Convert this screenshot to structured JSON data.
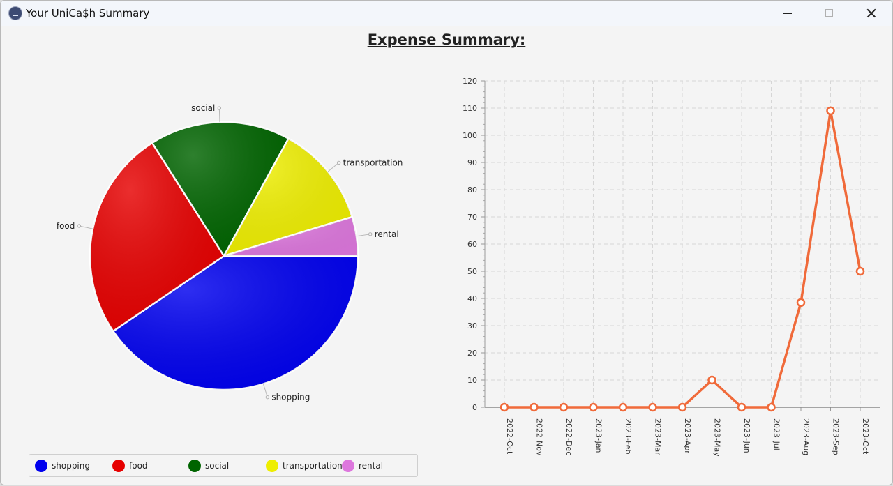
{
  "window": {
    "title": "Your UniCa$h Summary"
  },
  "page": {
    "heading": "Expense Summary:"
  },
  "colors": {
    "shopping": "#0000ee",
    "food": "#e60000",
    "social": "#006400",
    "transportation": "#eeee00",
    "rental": "#dd77dd",
    "line": "#f06a3a"
  },
  "chart_data": [
    {
      "type": "pie",
      "slices": [
        {
          "label": "shopping",
          "value": 40.5
        },
        {
          "label": "food",
          "value": 25.5
        },
        {
          "label": "social",
          "value": 17.0
        },
        {
          "label": "transportation",
          "value": 12.3
        },
        {
          "label": "rental",
          "value": 4.7
        }
      ],
      "legend": [
        "shopping",
        "food",
        "social",
        "transportation",
        "rental"
      ],
      "legend_position": "bottom"
    },
    {
      "type": "line",
      "x": [
        "2022-Oct",
        "2022-Nov",
        "2022-Dec",
        "2023-Jan",
        "2023-Feb",
        "2023-Mar",
        "2023-Apr",
        "2023-May",
        "2023-Jun",
        "2023-Jul",
        "2023-Aug",
        "2023-Sep",
        "2023-Oct"
      ],
      "values": [
        0,
        0,
        0,
        0,
        0,
        0,
        0,
        10,
        0,
        0,
        38.5,
        109,
        50
      ],
      "ylim": [
        0,
        120
      ],
      "yticks": [
        0,
        10,
        20,
        30,
        40,
        50,
        60,
        70,
        80,
        90,
        100,
        110,
        120
      ],
      "grid": true
    }
  ]
}
